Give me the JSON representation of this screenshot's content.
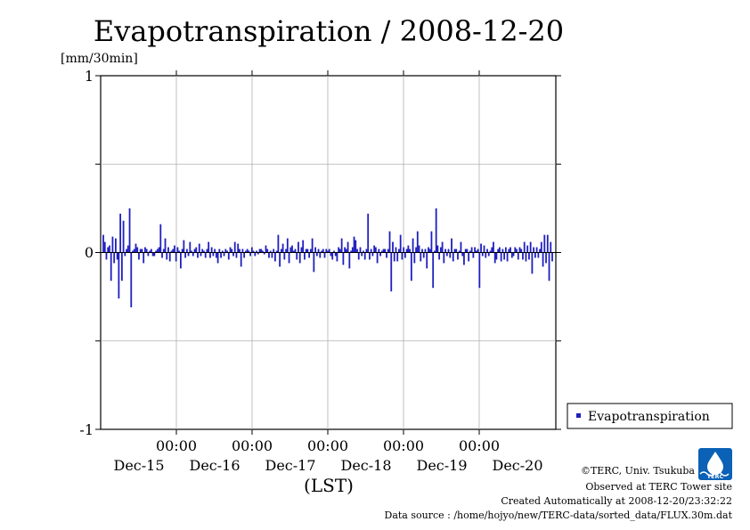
{
  "chart_data": {
    "type": "bar",
    "title": "Evapotranspiration / 2008-12-20",
    "ylabel": "[mm/30min]",
    "xlabel": "(LST)",
    "ylim": [
      -1,
      1
    ],
    "yticks": [
      "1",
      "0",
      "-1"
    ],
    "xtick_times": [
      "00:00",
      "00:00",
      "00:00",
      "00:00",
      "00:00"
    ],
    "xtick_dates": [
      "Dec-15",
      "Dec-16",
      "Dec-17",
      "Dec-18",
      "Dec-19",
      "Dec-20"
    ],
    "grid": true,
    "legend": "right",
    "bar_color": "#1f1fbf",
    "series": [
      {
        "name": "Evapotranspiration",
        "values": [
          0.1,
          0.06,
          -0.04,
          0.03,
          0.04,
          -0.16,
          0.09,
          -0.06,
          0.08,
          -0.04,
          -0.26,
          0.22,
          -0.16,
          0.18,
          -0.02,
          0.02,
          0.04,
          0.25,
          -0.31,
          0.01,
          0.02,
          0.05,
          0.03,
          -0.04,
          0.02,
          0.02,
          -0.06,
          0.03,
          0.02,
          -0.02,
          0.01,
          0.02,
          -0.02,
          -0.02,
          0.01,
          0.02,
          0.03,
          0.16,
          -0.03,
          0.02,
          0.08,
          -0.04,
          0.03,
          -0.05,
          0.01,
          0.02,
          0.04,
          -0.05,
          0.03,
          0.01,
          -0.09,
          0.02,
          0.07,
          -0.03,
          0.02,
          -0.02,
          0.06,
          0.01,
          -0.02,
          0.02,
          0.03,
          -0.03,
          0.05,
          -0.02,
          0.02,
          0.01,
          -0.03,
          0.02,
          0.06,
          -0.03,
          0.03,
          -0.02,
          0.02,
          -0.03,
          -0.06,
          0.02,
          -0.03,
          0.01,
          -0.02,
          0.02,
          0.01,
          -0.04,
          0.03,
          0.02,
          -0.02,
          0.06,
          -0.03,
          0.05,
          0.02,
          -0.08,
          0.02,
          -0.03,
          0.01,
          0.02,
          0.01,
          -0.02,
          0.03,
          0.01,
          -0.02,
          0.01,
          -0.01,
          0.02,
          0.02,
          0.01,
          -0.01,
          0.04,
          0.02,
          -0.03,
          0.01,
          -0.03,
          0.02,
          -0.05,
          0.01,
          0.1,
          -0.08,
          0.02,
          0.05,
          -0.04,
          0.02,
          0.08,
          -0.06,
          0.03,
          0.04,
          0.01,
          0.02,
          -0.04,
          0.06,
          -0.06,
          0.03,
          0.07,
          -0.04,
          0.02,
          0.02,
          -0.03,
          0.02,
          0.08,
          -0.11,
          0.03,
          -0.02,
          0.02,
          -0.03,
          0.01,
          0.02,
          -0.03,
          0.02,
          0.01,
          0.02,
          -0.02,
          -0.04,
          0.01,
          -0.02,
          -0.05,
          0.03,
          0.02,
          0.08,
          -0.07,
          0.03,
          0.02,
          0.06,
          -0.09,
          0.01,
          0.03,
          0.09,
          0.07,
          0.02,
          -0.04,
          0.03,
          -0.02,
          0.01,
          -0.04,
          0.02,
          0.22,
          -0.04,
          0.02,
          -0.02,
          0.04,
          0.03,
          -0.06,
          0.02,
          -0.02,
          0.01,
          0.02,
          0.02,
          -0.03,
          0.02,
          0.12,
          -0.22,
          0.06,
          -0.05,
          0.03,
          -0.05,
          0.02,
          0.1,
          -0.04,
          0.03,
          -0.03,
          0.02,
          0.04,
          0.02,
          -0.16,
          0.08,
          -0.06,
          0.03,
          0.12,
          0.04,
          -0.05,
          0.02,
          -0.03,
          0.02,
          -0.09,
          0.03,
          0.02,
          0.12,
          -0.2,
          0.01,
          0.25,
          0.04,
          -0.04,
          0.03,
          0.06,
          -0.06,
          0.02,
          -0.02,
          0.02,
          -0.03,
          0.08,
          -0.05,
          0.02,
          0.02,
          -0.04,
          0.01,
          0.06,
          -0.02,
          -0.07,
          0.02,
          0.02,
          -0.05,
          0.01,
          0.03,
          -0.03,
          0.03,
          0.01,
          0.02,
          -0.2,
          0.05,
          -0.02,
          0.04,
          -0.03,
          0.02,
          -0.02,
          0.01,
          0.03,
          0.06,
          -0.06,
          -0.04,
          0.02,
          0.03,
          -0.05,
          0.02,
          -0.04,
          0.03,
          -0.05,
          0.02,
          0.03,
          -0.03,
          -0.02,
          0.03,
          0.02,
          -0.04,
          0.03,
          0.02,
          -0.04,
          0.06,
          -0.05,
          0.04,
          -0.04,
          0.06,
          -0.12,
          0.03,
          -0.03,
          0.03,
          -0.03,
          0.02,
          0.06,
          -0.08,
          0.1,
          -0.06,
          0.1,
          -0.16,
          0.06,
          -0.05
        ]
      }
    ]
  },
  "credits": {
    "copyright": "©TERC, Univ. Tsukuba",
    "observed": "Observed at TERC Tower site",
    "created": "Created Automatically at 2008-12-20/23:32:22",
    "source": "Data source : /home/hojyo/new/TERC-data/sorted_data/FLUX.30m.dat",
    "logo_text": "TERC"
  }
}
